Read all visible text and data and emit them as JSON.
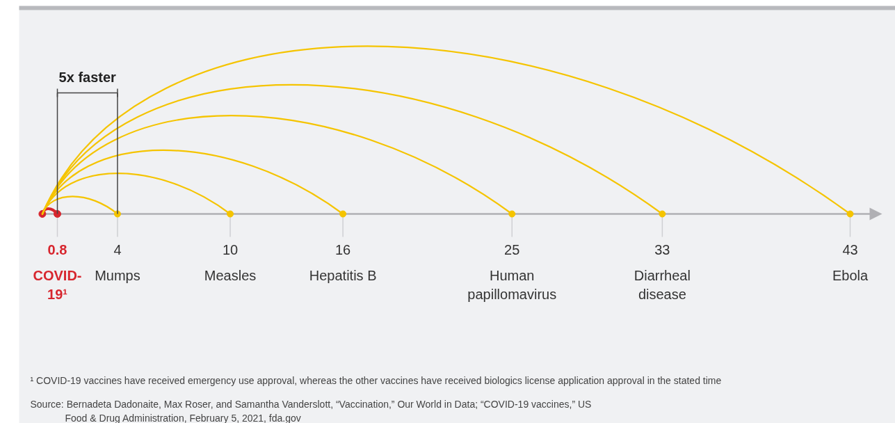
{
  "chart_data": {
    "type": "other",
    "categories": [
      "COVID-19¹",
      "Mumps",
      "Measles",
      "Hepatitis B",
      "Human papillomavirus",
      "Diarrheal disease",
      "Ebola"
    ],
    "values": [
      0.8,
      4,
      10,
      16,
      25,
      33,
      43
    ],
    "colors": [
      "#d7262e",
      "#f5c400",
      "#f5c400",
      "#f5c400",
      "#f5c400",
      "#f5c400",
      "#f5c400"
    ],
    "data_labels": true,
    "annotations": [
      "5x faster",
      "¹ COVID-19 vaccines have received emergency use approval, whereas the other vaccines have received biologics license application approval in the stated time",
      "Source: Bernadeta Dadonaite, Max Roser, and Samantha Vanderslott, “Vaccination,” Our World in Data; “COVID-19 vaccines,” US Food & Drug Administration, February 5, 2021, fda.gov"
    ]
  }
}
